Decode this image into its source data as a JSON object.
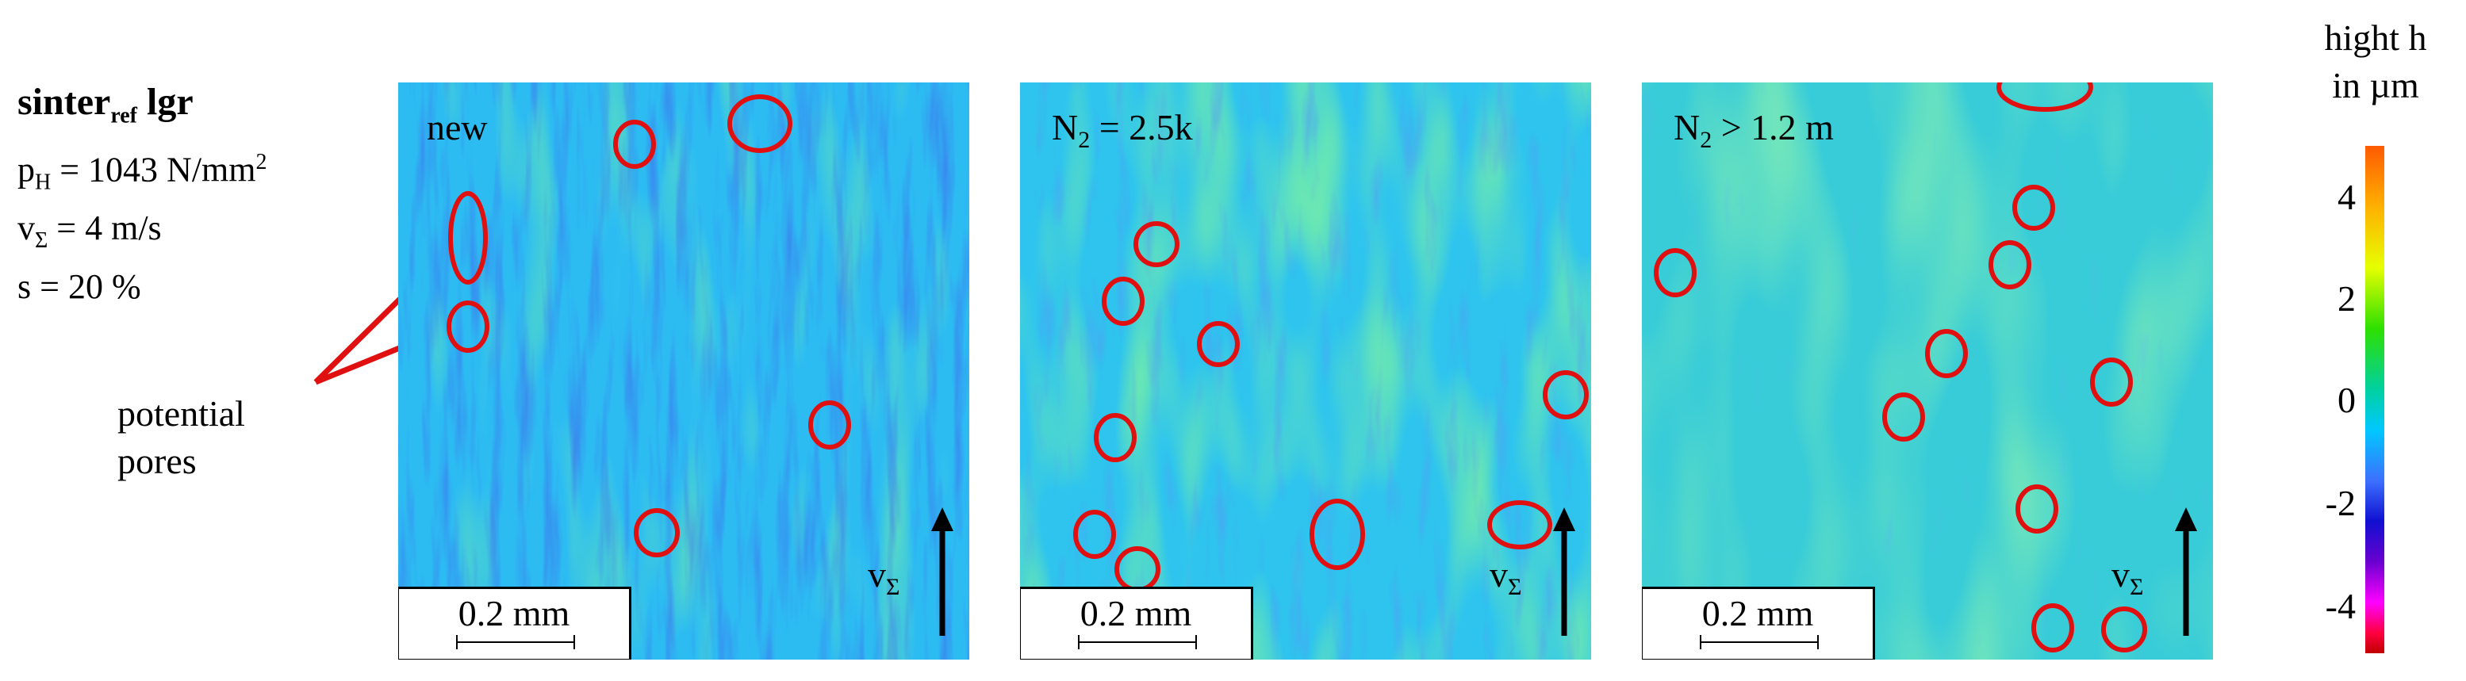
{
  "parameters": {
    "title_main": "sinter",
    "title_sub": "ref",
    "title_tail": " lgr",
    "pressure_prefix": "p",
    "pressure_sub": "H",
    "pressure_value": " = 1043 N/mm",
    "pressure_exp": "2",
    "velocity_prefix": "v",
    "velocity_sub": "Σ",
    "velocity_value": " = 4 m/s",
    "slip": "s = 20 %"
  },
  "annotation": {
    "line1": "potential",
    "line2": "pores"
  },
  "panels": [
    {
      "label_main": "new",
      "label_sub": "",
      "label_tail": "",
      "scale": "0.2 mm",
      "v_main": "v",
      "v_sub": "Σ"
    },
    {
      "label_main": "N",
      "label_sub": "2",
      "label_tail": " = 2.5k",
      "scale": "0.2 mm",
      "v_main": "v",
      "v_sub": "Σ"
    },
    {
      "label_main": "N",
      "label_sub": "2",
      "label_tail": " > 1.2 m",
      "scale": "0.2 mm",
      "v_main": "v",
      "v_sub": "Σ"
    }
  ],
  "colorbar": {
    "title_line1": "hight h",
    "title_line2": "in µm",
    "ticks": [
      "4",
      "2",
      "0",
      "-2",
      "-4"
    ]
  },
  "colors": {
    "marker": "#e01010",
    "base_map": "#28b8f0"
  }
}
